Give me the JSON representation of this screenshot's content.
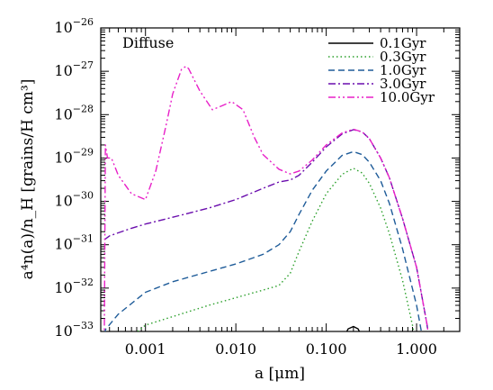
{
  "chart_data": {
    "type": "line",
    "annotation": "Diffuse",
    "xlabel": "a [μm]",
    "ylabel": "a⁴n(a)/n_H [grains/H cm³]",
    "x_scale": "log",
    "y_scale": "log",
    "xlim": [
      0.00032,
      3.0
    ],
    "ylim": [
      1e-33,
      1e-26
    ],
    "grid": false,
    "legend_position": "top-right",
    "x_ticks": [
      {
        "value": 0.001,
        "label": "0.001"
      },
      {
        "value": 0.01,
        "label": "0.010"
      },
      {
        "value": 0.1,
        "label": "0.100"
      },
      {
        "value": 1.0,
        "label": "1.000"
      }
    ],
    "y_ticks": [
      {
        "value": 1e-33,
        "base": "10",
        "exp": "−33"
      },
      {
        "value": 1e-32,
        "base": "10",
        "exp": "−32"
      },
      {
        "value": 1e-31,
        "base": "10",
        "exp": "−31"
      },
      {
        "value": 1e-30,
        "base": "10",
        "exp": "−30"
      },
      {
        "value": 1e-29,
        "base": "10",
        "exp": "−29"
      },
      {
        "value": 1e-28,
        "base": "10",
        "exp": "−28"
      },
      {
        "value": 1e-27,
        "base": "10",
        "exp": "−27"
      },
      {
        "value": 1e-26,
        "base": "10",
        "exp": "−26"
      }
    ],
    "series": [
      {
        "name": "0.1Gyr",
        "color": "#000000",
        "dash": "solid",
        "points": [
          [
            0.155,
            5e-34
          ],
          [
            0.16,
            8e-34
          ],
          [
            0.175,
            1.15e-33
          ],
          [
            0.2,
            1.3e-33
          ],
          [
            0.225,
            1.15e-33
          ],
          [
            0.245,
            8e-34
          ],
          [
            0.25,
            5e-34
          ]
        ]
      },
      {
        "name": "0.3Gyr",
        "color": "#2ca02c",
        "dash": "dotted",
        "points": [
          [
            0.00055,
            5e-34
          ],
          [
            0.001,
            1.4e-33
          ],
          [
            0.002,
            2.2e-33
          ],
          [
            0.005,
            4e-33
          ],
          [
            0.01,
            6e-33
          ],
          [
            0.02,
            9e-33
          ],
          [
            0.03,
            1.15e-32
          ],
          [
            0.04,
            2.2e-32
          ],
          [
            0.05,
            7e-32
          ],
          [
            0.07,
            3.5e-31
          ],
          [
            0.1,
            1.5e-30
          ],
          [
            0.15,
            4.2e-30
          ],
          [
            0.2,
            5.8e-30
          ],
          [
            0.25,
            4.5e-30
          ],
          [
            0.3,
            2.6e-30
          ],
          [
            0.4,
            7e-31
          ],
          [
            0.5,
            1.8e-31
          ],
          [
            0.7,
            1.5e-32
          ],
          [
            0.9,
            1.4e-33
          ],
          [
            1.0,
            5e-34
          ]
        ]
      },
      {
        "name": "1.0Gyr",
        "color": "#1f5c99",
        "dash": "dashed",
        "points": [
          [
            0.00035,
            5e-34
          ],
          [
            0.00036,
            1.1e-33
          ],
          [
            0.0005,
            2.5e-33
          ],
          [
            0.001,
            8e-33
          ],
          [
            0.002,
            1.4e-32
          ],
          [
            0.005,
            2.4e-32
          ],
          [
            0.01,
            3.6e-32
          ],
          [
            0.02,
            6e-32
          ],
          [
            0.03,
            1e-31
          ],
          [
            0.04,
            2e-31
          ],
          [
            0.05,
            5e-31
          ],
          [
            0.07,
            1.8e-30
          ],
          [
            0.1,
            5e-30
          ],
          [
            0.15,
            1.15e-29
          ],
          [
            0.2,
            1.4e-29
          ],
          [
            0.25,
            1.2e-29
          ],
          [
            0.3,
            8e-30
          ],
          [
            0.4,
            3e-30
          ],
          [
            0.5,
            9e-31
          ],
          [
            0.7,
            8e-32
          ],
          [
            1.0,
            4e-33
          ],
          [
            1.2,
            5e-34
          ]
        ]
      },
      {
        "name": "3.0Gyr",
        "color": "#6a0dad",
        "dash": "dashdot",
        "points": [
          [
            0.00035,
            1.3e-31
          ],
          [
            0.0004,
            1.6e-31
          ],
          [
            0.0007,
            2.4e-31
          ],
          [
            0.001,
            3e-31
          ],
          [
            0.002,
            4.3e-31
          ],
          [
            0.005,
            7e-31
          ],
          [
            0.01,
            1.1e-30
          ],
          [
            0.02,
            2e-30
          ],
          [
            0.03,
            2.8e-30
          ],
          [
            0.04,
            3.1e-30
          ],
          [
            0.05,
            4e-30
          ],
          [
            0.07,
            8e-30
          ],
          [
            0.1,
            1.8e-29
          ],
          [
            0.15,
            3.6e-29
          ],
          [
            0.2,
            4.5e-29
          ],
          [
            0.25,
            4e-29
          ],
          [
            0.3,
            2.8e-29
          ],
          [
            0.4,
            1e-29
          ],
          [
            0.5,
            3.5e-30
          ],
          [
            0.7,
            4e-31
          ],
          [
            1.0,
            3e-32
          ],
          [
            1.3,
            1.5e-33
          ],
          [
            1.4,
            5e-34
          ]
        ]
      },
      {
        "name": "10.0Gyr",
        "color": "#e820c8",
        "dash": "dashdotdot",
        "points": [
          [
            0.00035,
            5e-34
          ],
          [
            0.00036,
            2e-29
          ],
          [
            0.00038,
            1e-29
          ],
          [
            0.00042,
            1e-29
          ],
          [
            0.0005,
            4e-30
          ],
          [
            0.0007,
            1.5e-30
          ],
          [
            0.001,
            1.1e-30
          ],
          [
            0.0013,
            5e-30
          ],
          [
            0.0017,
            6e-29
          ],
          [
            0.002,
            3e-28
          ],
          [
            0.0025,
            1.1e-27
          ],
          [
            0.0028,
            1.3e-27
          ],
          [
            0.003,
            1.15e-27
          ],
          [
            0.004,
            3.5e-28
          ],
          [
            0.0055,
            1.3e-28
          ],
          [
            0.007,
            1.6e-28
          ],
          [
            0.009,
            2e-28
          ],
          [
            0.012,
            1.3e-28
          ],
          [
            0.016,
            3e-29
          ],
          [
            0.02,
            1.2e-29
          ],
          [
            0.03,
            5.5e-30
          ],
          [
            0.04,
            4.3e-30
          ],
          [
            0.05,
            5e-30
          ],
          [
            0.07,
            9e-30
          ],
          [
            0.1,
            2e-29
          ],
          [
            0.15,
            3.8e-29
          ],
          [
            0.2,
            4.6e-29
          ],
          [
            0.25,
            4e-29
          ],
          [
            0.3,
            2.8e-29
          ],
          [
            0.4,
            1e-29
          ],
          [
            0.5,
            3.5e-30
          ],
          [
            0.7,
            4e-31
          ],
          [
            1.0,
            3e-32
          ],
          [
            1.3,
            1.5e-33
          ],
          [
            1.4,
            5e-34
          ]
        ]
      }
    ]
  }
}
